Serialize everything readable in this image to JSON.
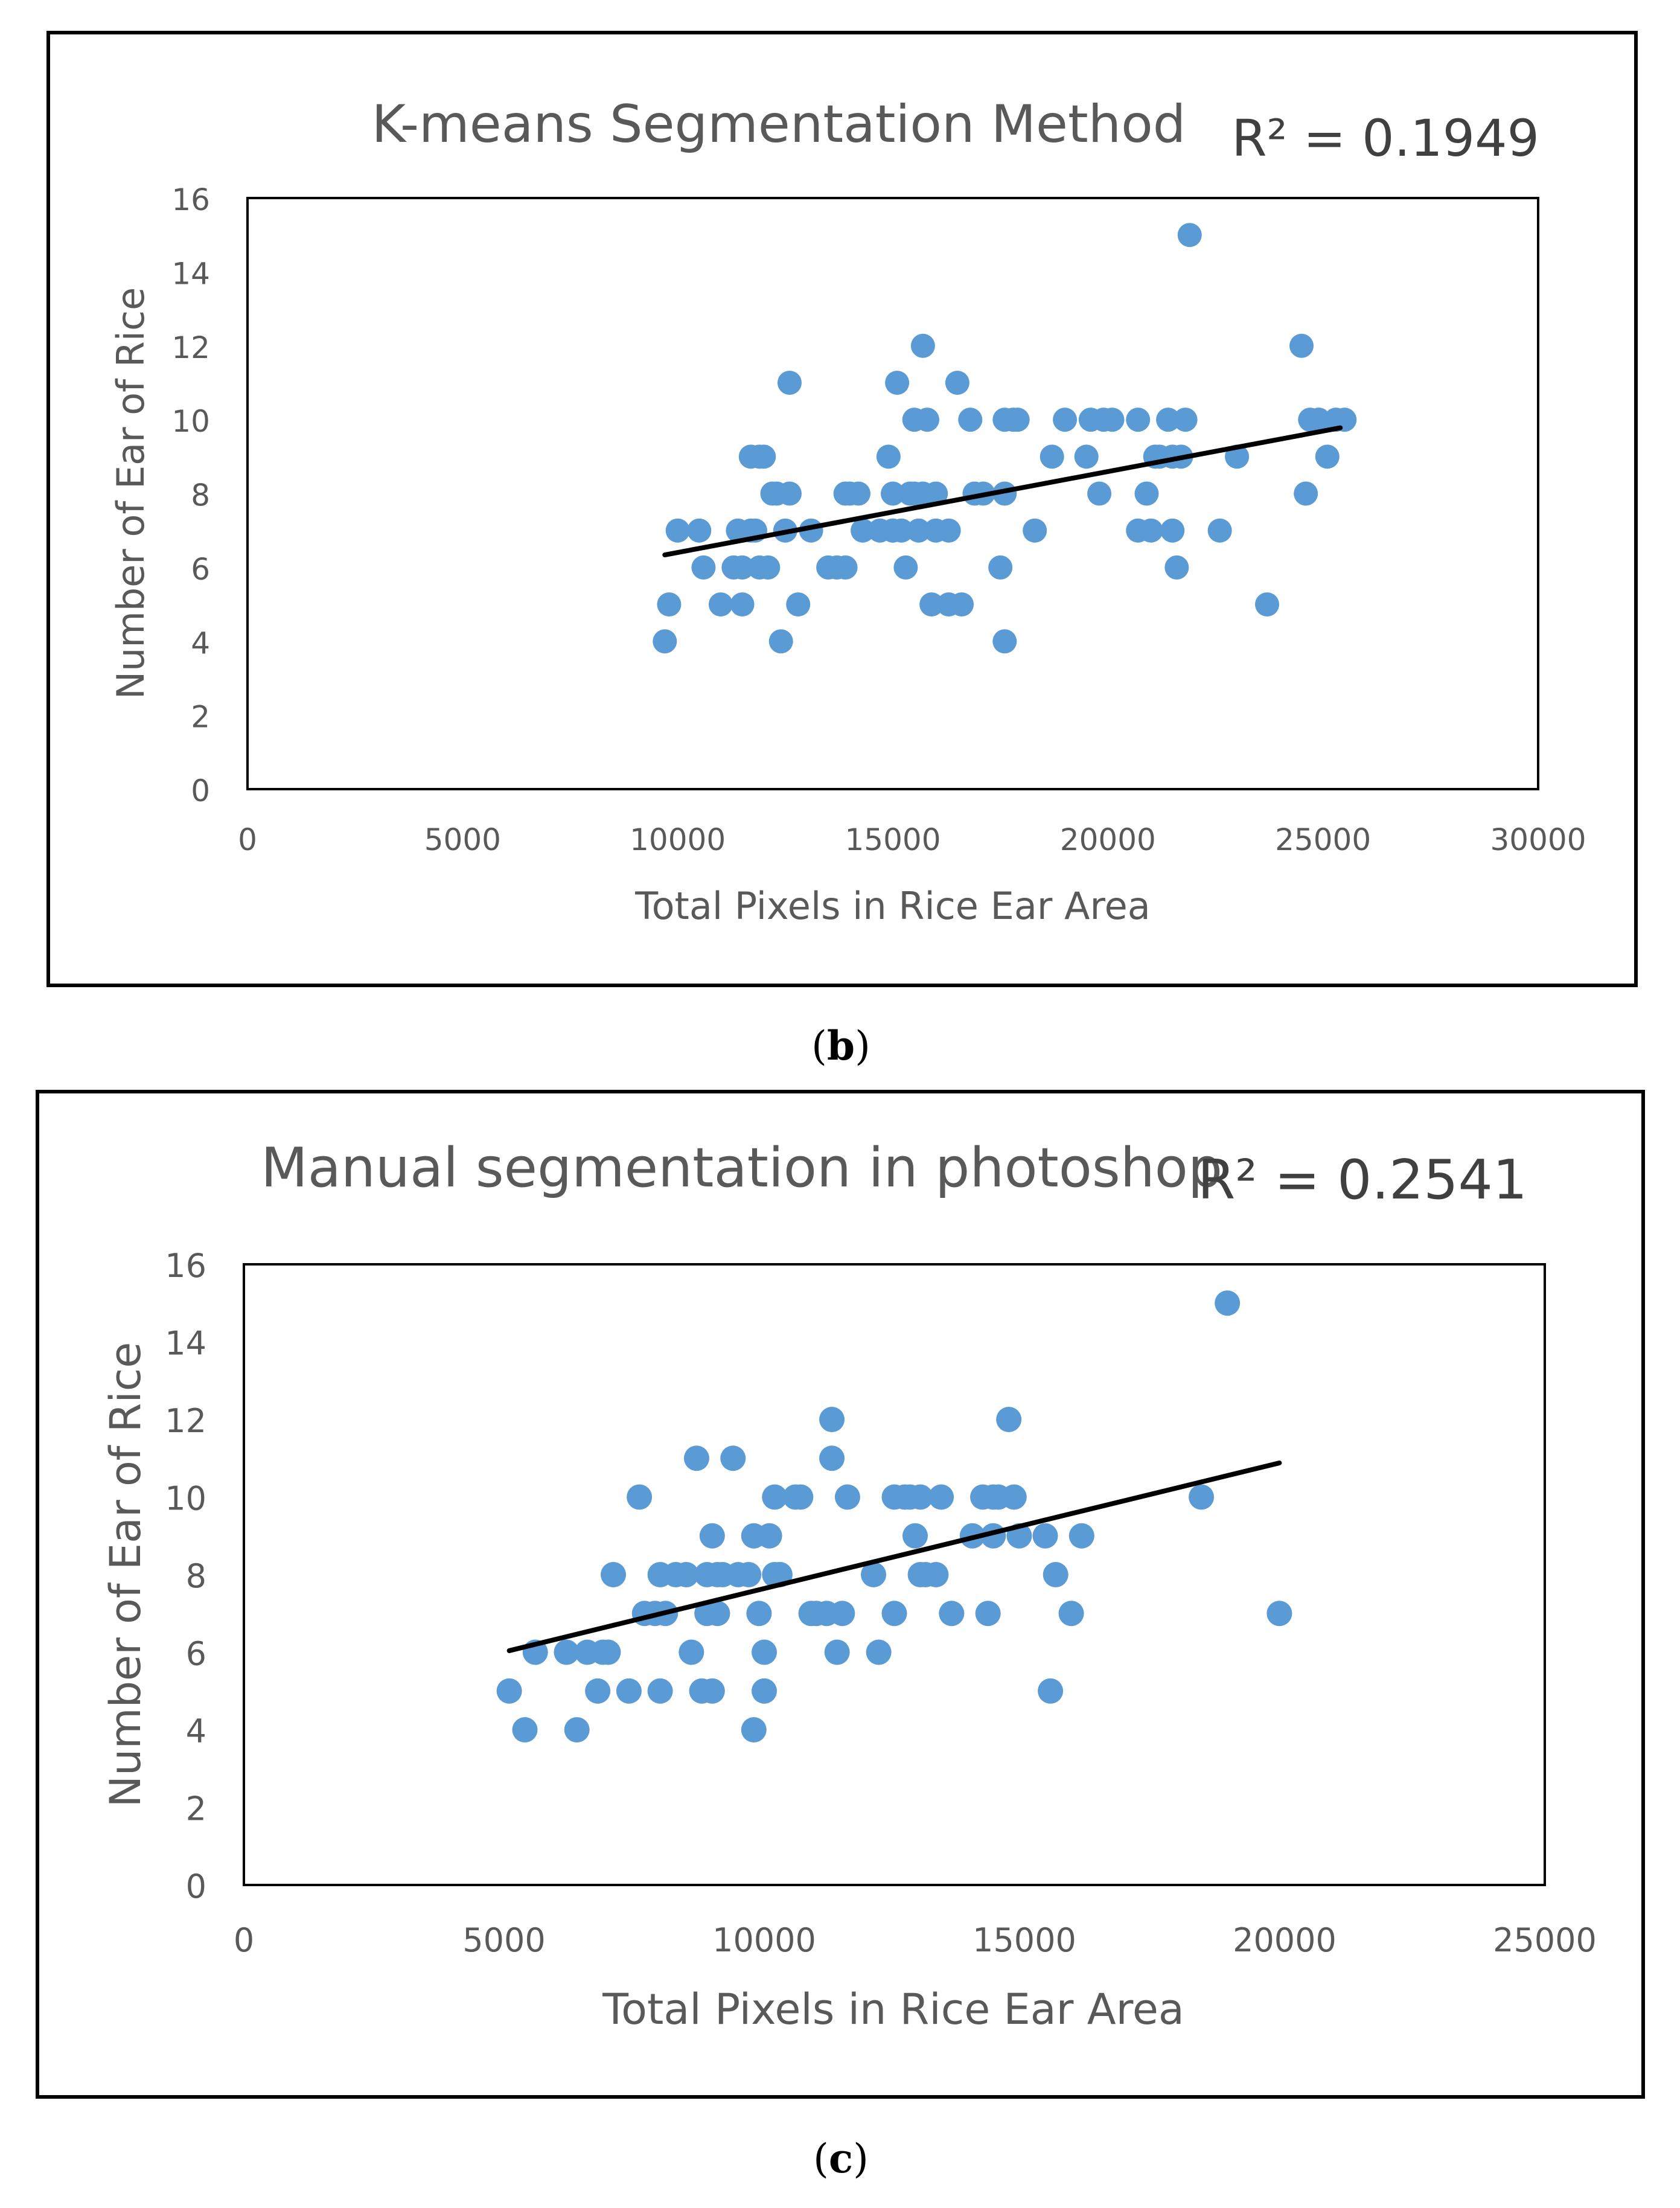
{
  "chart_data": [
    {
      "panel_label": "b",
      "type": "scatter",
      "title": "K-means Segmentation Method",
      "r_squared_label": "R² = 0.1949",
      "xlabel": "Total Pixels in Rice Ear Area",
      "ylabel": "Number of Ear of Rice",
      "xlim": [
        0,
        30000
      ],
      "ylim": [
        0,
        16
      ],
      "xticks": [
        0,
        5000,
        10000,
        15000,
        20000,
        25000,
        30000
      ],
      "yticks": [
        0,
        2,
        4,
        6,
        8,
        10,
        12,
        14,
        16
      ],
      "point_color": "#5B9BD5",
      "trendline": {
        "x": [
          9700,
          25400
        ],
        "y": [
          6.34,
          9.78
        ],
        "color": "#000000"
      },
      "series": [
        {
          "name": "data",
          "x": [
            9700,
            9800,
            10000,
            10500,
            10600,
            11000,
            11300,
            11400,
            11500,
            11500,
            11700,
            11700,
            11800,
            11900,
            11900,
            12000,
            12100,
            12200,
            12300,
            12400,
            12500,
            12600,
            12600,
            12800,
            13100,
            13500,
            13700,
            13900,
            13900,
            14000,
            14200,
            14300,
            14700,
            14900,
            15000,
            15000,
            15000,
            15100,
            15200,
            15300,
            15400,
            15500,
            15500,
            15600,
            15700,
            15700,
            15800,
            15900,
            16000,
            16000,
            16300,
            16300,
            16500,
            16600,
            16800,
            16900,
            17100,
            17500,
            17600,
            17600,
            17600,
            17800,
            17900,
            18300,
            18700,
            19000,
            19500,
            19600,
            19800,
            19900,
            20100,
            20700,
            20700,
            20900,
            21000,
            21100,
            21200,
            21400,
            21500,
            21500,
            21600,
            21700,
            21800,
            21900,
            22600,
            23000,
            23700,
            24500,
            24600,
            24700,
            24900,
            25100,
            25300,
            25500
          ],
          "y": [
            4,
            5,
            7,
            7,
            6,
            5,
            6,
            7,
            5,
            6,
            7,
            9,
            7,
            6,
            9,
            9,
            6,
            8,
            8,
            4,
            7,
            11,
            8,
            5,
            7,
            6,
            6,
            8,
            6,
            8,
            8,
            7,
            7,
            9,
            8,
            7,
            7,
            11,
            7,
            6,
            8,
            10,
            8,
            7,
            8,
            12,
            10,
            5,
            8,
            7,
            7,
            5,
            11,
            5,
            10,
            8,
            8,
            6,
            4,
            8,
            10,
            10,
            10,
            7,
            9,
            10,
            9,
            10,
            8,
            10,
            10,
            10,
            7,
            8,
            7,
            9,
            9,
            10,
            7,
            9,
            6,
            9,
            10,
            15,
            7,
            9,
            5,
            12,
            8,
            10,
            10,
            9,
            10,
            10
          ]
        }
      ]
    },
    {
      "panel_label": "c",
      "type": "scatter",
      "title": "Manual segmentation in photoshop",
      "r_squared_label": "R² = 0.2541",
      "xlabel": "Total Pixels in Rice Ear Area",
      "ylabel": "Number of Ear of Rice",
      "xlim": [
        0,
        25000
      ],
      "ylim": [
        0,
        16
      ],
      "xticks": [
        0,
        5000,
        10000,
        15000,
        20000,
        25000
      ],
      "yticks": [
        0,
        2,
        4,
        6,
        8,
        10,
        12,
        14,
        16
      ],
      "point_color": "#5B9BD5",
      "trendline": {
        "x": [
          5100,
          19900
        ],
        "y": [
          6.04,
          10.88
        ],
        "color": "#000000"
      },
      "series": [
        {
          "name": "data",
          "x": [
            5100,
            5400,
            5600,
            6200,
            6400,
            6600,
            6800,
            6900,
            7000,
            7100,
            7400,
            7600,
            7700,
            7900,
            8000,
            8000,
            8100,
            8300,
            8500,
            8600,
            8700,
            8800,
            8900,
            8900,
            9000,
            9000,
            9100,
            9100,
            9200,
            9400,
            9500,
            9700,
            9800,
            9800,
            9900,
            10000,
            10000,
            10100,
            10200,
            10200,
            10300,
            10300,
            10600,
            10700,
            10900,
            11000,
            11200,
            11300,
            11300,
            11400,
            11500,
            11600,
            12100,
            12200,
            12500,
            12500,
            12700,
            12800,
            12900,
            13000,
            13000,
            13100,
            13300,
            13400,
            13600,
            14000,
            14200,
            14300,
            14400,
            14400,
            14500,
            14700,
            14800,
            14900,
            15400,
            15500,
            15600,
            15900,
            16100,
            18400,
            18900,
            19900
          ],
          "y": [
            5,
            4,
            6,
            6,
            4,
            6,
            5,
            6,
            6,
            8,
            5,
            10,
            7,
            7,
            5,
            8,
            7,
            8,
            8,
            6,
            11,
            5,
            7,
            8,
            5,
            9,
            7,
            8,
            8,
            11,
            8,
            8,
            9,
            4,
            7,
            5,
            6,
            9,
            8,
            10,
            8,
            8,
            10,
            10,
            7,
            7,
            7,
            11,
            12,
            6,
            7,
            10,
            8,
            6,
            10,
            7,
            10,
            10,
            9,
            8,
            10,
            8,
            8,
            10,
            7,
            9,
            10,
            7,
            9,
            10,
            10,
            12,
            10,
            9,
            9,
            5,
            8,
            7,
            9,
            10,
            15,
            7
          ]
        }
      ]
    }
  ]
}
